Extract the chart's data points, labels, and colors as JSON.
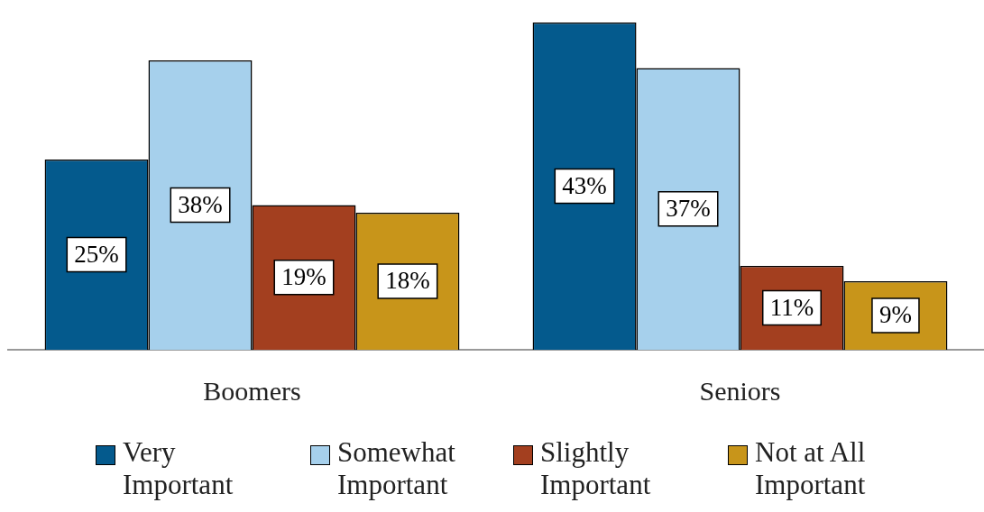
{
  "chart_data": {
    "type": "bar",
    "categories": [
      "Boomers",
      "Seniors"
    ],
    "series": [
      {
        "name": "Very Important",
        "color": "#045a8d",
        "values": [
          25,
          43
        ],
        "value_labels": [
          "25%",
          "43%"
        ]
      },
      {
        "name": "Somewhat Important",
        "color": "#a6d0ec",
        "values": [
          38,
          37
        ],
        "value_labels": [
          "38%",
          "37%"
        ]
      },
      {
        "name": "Slightly Important",
        "color": "#a33f1f",
        "values": [
          19,
          11
        ],
        "value_labels": [
          "19%",
          "11%"
        ]
      },
      {
        "name": "Not at All Important",
        "color": "#c8951a",
        "values": [
          18,
          9
        ],
        "value_labels": [
          "18%",
          "9%"
        ]
      }
    ],
    "legend": "bottom",
    "grid": false
  }
}
